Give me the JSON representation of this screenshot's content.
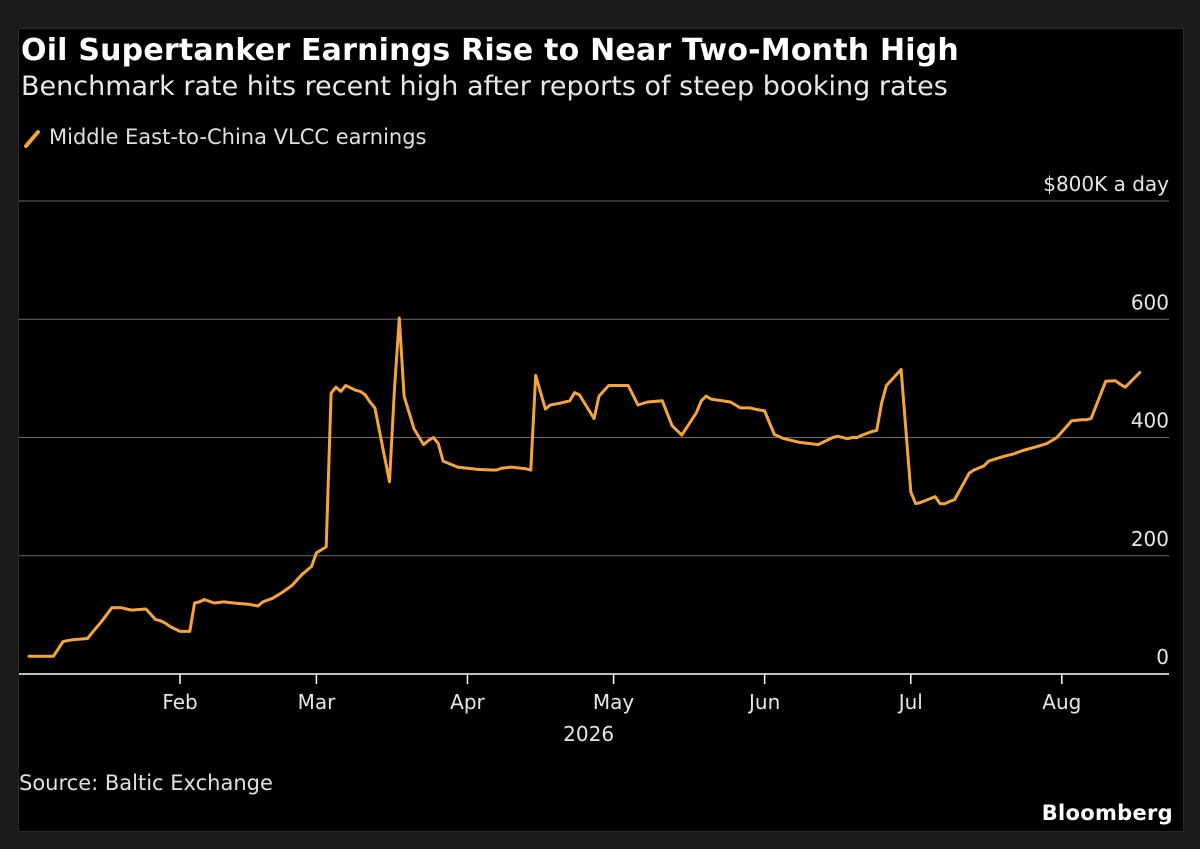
{
  "header": {
    "title": "Oil Supertanker Earnings Rise to Near Two-Month High",
    "subtitle": "Benchmark rate hits recent high after reports of steep booking rates"
  },
  "footer": {
    "source": "Source: Baltic Exchange",
    "brand": "Bloomberg"
  },
  "colors": {
    "line": "#f5a43a",
    "grid": "#6a6a6a",
    "axis": "#ffffff",
    "background": "#000000"
  },
  "chart_data": {
    "type": "line",
    "series": [
      {
        "name": "Middle East-to-China VLCC earnings",
        "x": [
          "2026-01-01",
          "2026-01-03",
          "2026-01-06",
          "2026-01-08",
          "2026-01-10",
          "2026-01-13",
          "2026-01-14",
          "2026-01-16",
          "2026-01-18",
          "2026-01-20",
          "2026-01-22",
          "2026-01-25",
          "2026-01-27",
          "2026-01-28",
          "2026-01-29",
          "2026-01-30",
          "2026-02-01",
          "2026-02-03",
          "2026-02-04",
          "2026-02-05",
          "2026-02-06",
          "2026-02-08",
          "2026-02-10",
          "2026-02-12",
          "2026-02-15",
          "2026-02-17",
          "2026-02-18",
          "2026-02-20",
          "2026-02-22",
          "2026-02-24",
          "2026-02-26",
          "2026-02-27",
          "2026-02-28",
          "2026-03-01",
          "2026-03-03",
          "2026-03-04",
          "2026-03-05",
          "2026-03-06",
          "2026-03-07",
          "2026-03-09",
          "2026-03-10",
          "2026-03-11",
          "2026-03-12",
          "2026-03-13",
          "2026-03-16",
          "2026-03-17",
          "2026-03-18",
          "2026-03-19",
          "2026-03-21",
          "2026-03-23",
          "2026-03-24",
          "2026-03-25",
          "2026-03-26",
          "2026-03-27",
          "2026-03-30",
          "2026-04-01",
          "2026-04-02",
          "2026-04-03",
          "2026-04-06",
          "2026-04-07",
          "2026-04-08",
          "2026-04-10",
          "2026-04-13",
          "2026-04-14",
          "2026-04-15",
          "2026-04-17",
          "2026-04-18",
          "2026-04-20",
          "2026-04-22",
          "2026-04-23",
          "2026-04-24",
          "2026-04-27",
          "2026-04-28",
          "2026-04-30",
          "2026-05-04",
          "2026-05-06",
          "2026-05-08",
          "2026-05-11",
          "2026-05-13",
          "2026-05-15",
          "2026-05-18",
          "2026-05-19",
          "2026-05-20",
          "2026-05-21",
          "2026-05-25",
          "2026-05-27",
          "2026-05-29",
          "2026-05-30",
          "2026-06-01",
          "2026-06-03",
          "2026-06-05",
          "2026-06-08",
          "2026-06-10",
          "2026-06-12",
          "2026-06-15",
          "2026-06-16",
          "2026-06-18",
          "2026-06-19",
          "2026-06-20",
          "2026-06-21",
          "2026-06-23",
          "2026-06-24",
          "2026-06-25",
          "2026-06-26",
          "2026-06-29",
          "2026-07-01",
          "2026-07-02",
          "2026-07-03",
          "2026-07-06",
          "2026-07-07",
          "2026-07-08",
          "2026-07-09",
          "2026-07-10",
          "2026-07-13",
          "2026-07-14",
          "2026-07-16",
          "2026-07-17",
          "2026-07-20",
          "2026-07-22",
          "2026-07-24",
          "2026-07-27",
          "2026-07-29",
          "2026-07-31",
          "2026-08-03",
          "2026-08-05",
          "2026-08-06",
          "2026-08-07",
          "2026-08-10",
          "2026-08-12",
          "2026-08-13",
          "2026-08-14",
          "2026-08-17"
        ],
        "values": [
          30,
          30,
          30,
          55,
          58,
          60,
          70,
          90,
          112,
          112,
          108,
          110,
          92,
          90,
          86,
          80,
          72,
          72,
          120,
          122,
          126,
          120,
          122,
          120,
          118,
          115,
          122,
          128,
          138,
          150,
          168,
          175,
          182,
          205,
          215,
          475,
          485,
          478,
          488,
          480,
          478,
          472,
          460,
          450,
          325,
          480,
          602,
          470,
          415,
          388,
          395,
          400,
          390,
          360,
          350,
          348,
          347,
          346,
          345,
          345,
          348,
          350,
          347,
          345,
          505,
          448,
          455,
          458,
          462,
          476,
          472,
          432,
          470,
          488,
          488,
          455,
          460,
          462,
          420,
          404,
          442,
          462,
          470,
          465,
          460,
          450,
          450,
          448,
          445,
          405,
          398,
          392,
          390,
          388,
          400,
          402,
          398,
          400,
          400,
          404,
          410,
          412,
          458,
          488,
          515,
          308,
          288,
          290,
          300,
          288,
          288,
          292,
          295,
          340,
          345,
          352,
          360,
          368,
          372,
          378,
          385,
          390,
          400,
          428,
          430,
          430,
          432,
          495,
          496,
          490,
          485,
          510
        ]
      }
    ],
    "xaxis": {
      "ticks": [
        "2026-02-01",
        "2026-03-01",
        "2026-04-01",
        "2026-05-01",
        "2026-06-01",
        "2026-07-01",
        "2026-08-01"
      ],
      "tick_labels": [
        "Feb",
        "Mar",
        "Apr",
        "May",
        "Jun",
        "Jul",
        "Aug"
      ],
      "year_label": "2026",
      "range": [
        "2026-01-01",
        "2026-08-23"
      ]
    },
    "yaxis": {
      "ticks": [
        0,
        200,
        400,
        600,
        800
      ],
      "tick_labels": [
        "0",
        "200",
        "400",
        "600",
        "$800K a day"
      ],
      "range": [
        0,
        800
      ],
      "position": "right"
    },
    "grid": true,
    "legend": "top-left"
  }
}
